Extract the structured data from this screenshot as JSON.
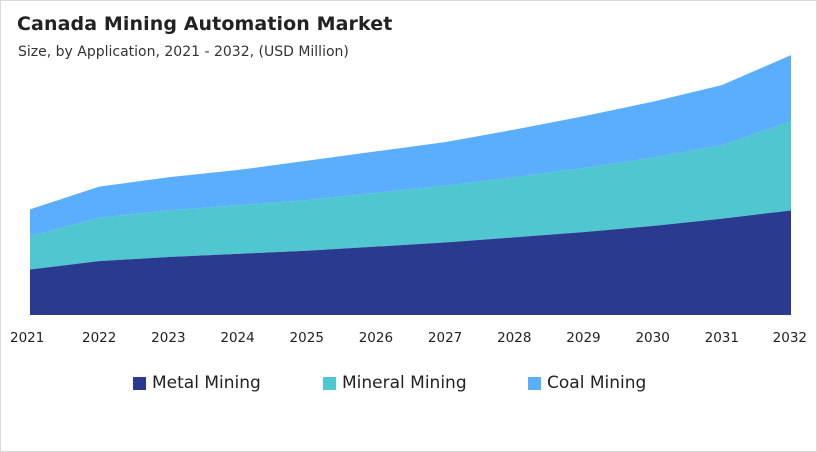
{
  "header": {
    "title": "Canada Mining Automation Market",
    "subtitle": "Size, by Application, 2021 - 2032, (USD Million)"
  },
  "colors": {
    "metal": "#293a8f",
    "mineral": "#4fc6d0",
    "coal": "#5aaefb"
  },
  "chart_data": {
    "type": "area",
    "stacked": true,
    "x": [
      "2021",
      "2022",
      "2023",
      "2024",
      "2025",
      "2026",
      "2027",
      "2028",
      "2029",
      "2030",
      "2031",
      "2032"
    ],
    "series": [
      {
        "name": "Metal Mining",
        "values": [
          44,
          52,
          56,
          59,
          62,
          66,
          70,
          75,
          80,
          86,
          93,
          101
        ]
      },
      {
        "name": "Mineral Mining",
        "values": [
          32,
          42,
          45,
          47,
          49,
          52,
          55,
          58,
          62,
          66,
          71,
          86
        ]
      },
      {
        "name": "Coal Mining",
        "values": [
          26,
          30,
          32,
          34,
          38,
          40,
          42,
          46,
          50,
          54,
          58,
          64
        ]
      }
    ],
    "xlabel": "",
    "ylabel": "",
    "ylim": [
      0,
      255
    ],
    "grid": false,
    "legend_position": "bottom"
  }
}
